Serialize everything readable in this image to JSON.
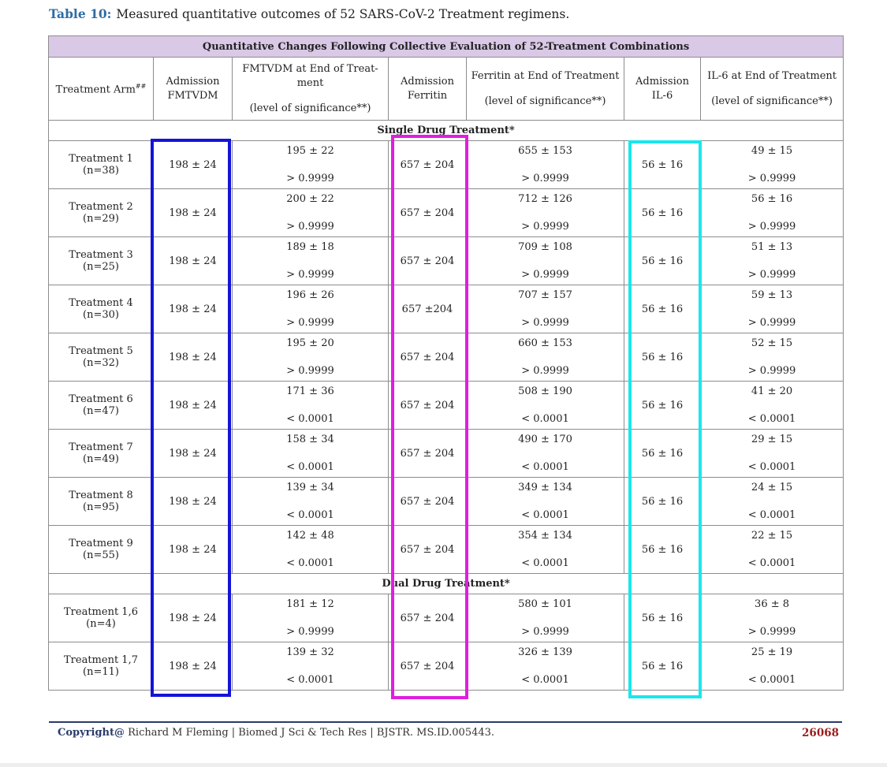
{
  "caption": {
    "label": "Table 10:",
    "text": "Measured quantitative outcomes of 52 SARS-CoV-2 Treatment regimens."
  },
  "table": {
    "banner": "Quantitative Changes Following Collective Evaluation of 52-Treatment Combinations",
    "headers": {
      "arm": "Treatment Arm",
      "arm_sup": "##",
      "adm_fmtvdm_1": "Admission",
      "adm_fmtvdm_2": "FMTVDM",
      "end_fmtvdm_1": "FMTVDM at End of Treat-",
      "end_fmtvdm_2": "ment",
      "end_fmtvdm_3": "(level of significance**)",
      "adm_ferritin_1": "Admission",
      "adm_ferritin_2": "Ferritin",
      "end_ferritin_1": "Ferritin at End of Treatment",
      "end_ferritin_2": "(level of significance**)",
      "adm_il6_1": "Admission",
      "adm_il6_2": "IL-6",
      "end_il6_1": "IL-6 at End of Treatment",
      "end_il6_2": "(level of significance**)"
    },
    "sections": [
      {
        "title": "Single Drug Treatment*",
        "rows": [
          {
            "name": "Treatment 1",
            "n": "(n=38)",
            "adm_fmtvdm": "198 ± 24",
            "fmtvdm_end": "195 ± 22",
            "fmtvdm_p": "> 0.9999",
            "adm_ferritin": "657 ± 204",
            "ferritin_end": "655 ± 153",
            "ferritin_p": "> 0.9999",
            "adm_il6": "56 ± 16",
            "il6_end": "49 ± 15",
            "il6_p": "> 0.9999"
          },
          {
            "name": "Treatment 2",
            "n": "(n=29)",
            "adm_fmtvdm": "198 ± 24",
            "fmtvdm_end": "200 ± 22",
            "fmtvdm_p": "> 0.9999",
            "adm_ferritin": "657 ± 204",
            "ferritin_end": "712 ± 126",
            "ferritin_p": "> 0.9999",
            "adm_il6": "56 ± 16",
            "il6_end": "56 ± 16",
            "il6_p": "> 0.9999"
          },
          {
            "name": "Treatment 3",
            "n": "(n=25)",
            "adm_fmtvdm": "198 ± 24",
            "fmtvdm_end": "189 ± 18",
            "fmtvdm_p": "> 0.9999",
            "adm_ferritin": "657 ± 204",
            "ferritin_end": "709 ± 108",
            "ferritin_p": "> 0.9999",
            "adm_il6": "56 ± 16",
            "il6_end": "51 ± 13",
            "il6_p": "> 0.9999"
          },
          {
            "name": "Treatment 4",
            "n": "(n=30)",
            "adm_fmtvdm": "198 ± 24",
            "fmtvdm_end": "196 ± 26",
            "fmtvdm_p": "> 0.9999",
            "adm_ferritin": "657 ±204",
            "ferritin_end": "707 ± 157",
            "ferritin_p": "> 0.9999",
            "adm_il6": "56 ± 16",
            "il6_end": "59 ± 13",
            "il6_p": "> 0.9999"
          },
          {
            "name": "Treatment 5",
            "n": "(n=32)",
            "adm_fmtvdm": "198 ± 24",
            "fmtvdm_end": "195 ± 20",
            "fmtvdm_p": "> 0.9999",
            "adm_ferritin": "657 ± 204",
            "ferritin_end": "660 ± 153",
            "ferritin_p": "> 0.9999",
            "adm_il6": "56 ± 16",
            "il6_end": "52 ± 15",
            "il6_p": "> 0.9999"
          },
          {
            "name": "Treatment 6",
            "n": "(n=47)",
            "adm_fmtvdm": "198 ± 24",
            "fmtvdm_end": "171 ± 36",
            "fmtvdm_p": "< 0.0001",
            "adm_ferritin": "657 ± 204",
            "ferritin_end": "508 ± 190",
            "ferritin_p": "< 0.0001",
            "adm_il6": "56 ± 16",
            "il6_end": "41 ± 20",
            "il6_p": "< 0.0001"
          },
          {
            "name": "Treatment 7",
            "n": "(n=49)",
            "adm_fmtvdm": "198 ± 24",
            "fmtvdm_end": "158 ± 34",
            "fmtvdm_p": "< 0.0001",
            "adm_ferritin": "657 ± 204",
            "ferritin_end": "490 ± 170",
            "ferritin_p": "< 0.0001",
            "adm_il6": "56 ± 16",
            "il6_end": "29 ± 15",
            "il6_p": "< 0.0001"
          },
          {
            "name": "Treatment 8",
            "n": "(n=95)",
            "adm_fmtvdm": "198 ± 24",
            "fmtvdm_end": "139 ± 34",
            "fmtvdm_p": "< 0.0001",
            "adm_ferritin": "657 ± 204",
            "ferritin_end": "349 ± 134",
            "ferritin_p": "< 0.0001",
            "adm_il6": "56 ± 16",
            "il6_end": "24 ± 15",
            "il6_p": "< 0.0001"
          },
          {
            "name": "Treatment 9",
            "n": "(n=55)",
            "adm_fmtvdm": "198 ± 24",
            "fmtvdm_end": "142 ± 48",
            "fmtvdm_p": "< 0.0001",
            "adm_ferritin": "657 ± 204",
            "ferritin_end": "354 ± 134",
            "ferritin_p": "< 0.0001",
            "adm_il6": "56 ± 16",
            "il6_end": "22 ± 15",
            "il6_p": "< 0.0001"
          }
        ]
      },
      {
        "title": "Dual Drug Treatment*",
        "rows": [
          {
            "name": "Treatment 1,6",
            "n": "(n=4)",
            "adm_fmtvdm": "198 ± 24",
            "fmtvdm_end": "181 ± 12",
            "fmtvdm_p": "> 0.9999",
            "adm_ferritin": "657 ± 204",
            "ferritin_end": "580 ± 101",
            "ferritin_p": "> 0.9999",
            "adm_il6": "56 ± 16",
            "il6_end": "36 ± 8",
            "il6_p": "> 0.9999"
          },
          {
            "name": "Treatment 1,7",
            "n": "(n=11)",
            "adm_fmtvdm": "198 ± 24",
            "fmtvdm_end": "139 ± 32",
            "fmtvdm_p": "< 0.0001",
            "adm_ferritin": "657 ± 204",
            "ferritin_end": "326 ± 139",
            "ferritin_p": "< 0.0001",
            "adm_il6": "56 ± 16",
            "il6_end": "25 ± 19",
            "il6_p": "< 0.0001"
          }
        ]
      }
    ]
  },
  "highlights": {
    "admission_fmtvdm_color": "#1414d8",
    "admission_ferritin_color": "#e01ee0",
    "admission_il6_color": "#19e6ee"
  },
  "footer": {
    "copyright_label": "Copyright@",
    "copyright_text": "Richard M Fleming | Biomed J Sci & Tech Res | BJSTR. MS.ID.005443.",
    "page_number": "26068"
  }
}
